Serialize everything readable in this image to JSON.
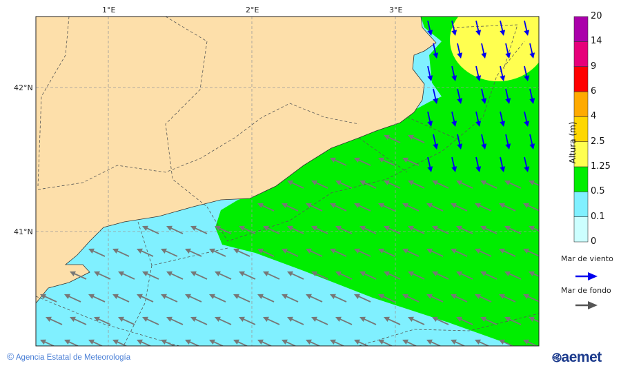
{
  "map": {
    "lon_labels": [
      "1°E",
      "2°E",
      "3°E"
    ],
    "lat_labels": [
      "42°N",
      "41°N"
    ]
  },
  "legend": {
    "title": "Altura (m)",
    "levels": [
      "0",
      "0.1",
      "0.5",
      "1.25",
      "2.5",
      "4",
      "6",
      "9",
      "14",
      "20"
    ],
    "colors": [
      "#ccffff",
      "#80f0ff",
      "#00ee00",
      "#ffff50",
      "#ffd700",
      "#ffaa00",
      "#ff0000",
      "#e6007a",
      "#aa00aa"
    ],
    "wind_sea_label": "Mar de viento",
    "swell_label": "Mar de fondo",
    "wind_sea_color": "#0000ee",
    "swell_color": "#555555"
  },
  "land_color": "#fddfaa",
  "footer": {
    "copyright_symbol": "©",
    "agency": "Agencia Estatal de Meteorología",
    "logo_text": "aemet"
  }
}
